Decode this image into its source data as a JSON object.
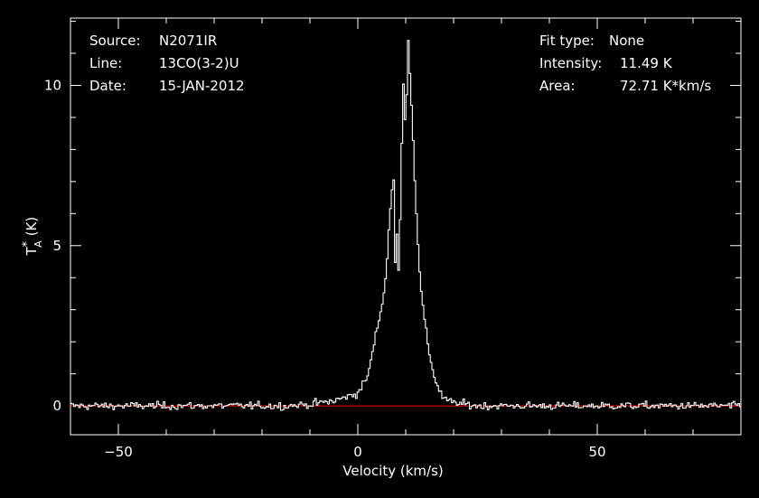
{
  "header": {
    "left": [
      {
        "key": "Source:",
        "value": "N2071IR"
      },
      {
        "key": "Line:",
        "value": "13CO(3-2)U"
      },
      {
        "key": "Date:",
        "value": "15-JAN-2012"
      }
    ],
    "right": [
      {
        "key": "Fit type:",
        "value": "None"
      },
      {
        "key": "Intensity:",
        "value": "11.49 K"
      },
      {
        "key": "Area:",
        "value": "72.71 K*km/s"
      }
    ]
  },
  "colors": {
    "background": "#000000",
    "axes": "#ffffff",
    "spectrum": "#ffffff",
    "baseline": "#ff0000"
  },
  "chart_data": {
    "type": "line",
    "title": "",
    "xlabel": "Velocity (km/s)",
    "ylabel_main": "T",
    "ylabel_sup": "*",
    "ylabel_sub": "A",
    "ylabel_unit": "(K)",
    "xlim": [
      -60,
      80
    ],
    "ylim": [
      -0.9,
      12.1
    ],
    "xticks": [
      {
        "value": -50,
        "label": "−50"
      },
      {
        "value": 0,
        "label": "0"
      },
      {
        "value": 50,
        "label": "50"
      }
    ],
    "yticks": [
      {
        "value": 0,
        "label": "0"
      },
      {
        "value": 5,
        "label": "5"
      },
      {
        "value": 10,
        "label": "10"
      }
    ],
    "baseline": 0,
    "grid": false,
    "legend": "none",
    "series": [
      {
        "style": "histogram",
        "profile_points": [
          [
            -60,
            0.0
          ],
          [
            -15,
            0.0
          ],
          [
            -10,
            0.05
          ],
          [
            -5,
            0.15
          ],
          [
            -2,
            0.3
          ],
          [
            0,
            0.4
          ],
          [
            2,
            0.9
          ],
          [
            3,
            1.6
          ],
          [
            4,
            2.4
          ],
          [
            5,
            3.1
          ],
          [
            6,
            4.2
          ],
          [
            6.5,
            5.6
          ],
          [
            7,
            6.6
          ],
          [
            7.5,
            7.1
          ],
          [
            7.9,
            3.9
          ],
          [
            8.2,
            5.5
          ],
          [
            8.6,
            3.8
          ],
          [
            9.0,
            7.0
          ],
          [
            9.5,
            10.1
          ],
          [
            10.0,
            8.6
          ],
          [
            10.5,
            11.49
          ],
          [
            11.0,
            10.2
          ],
          [
            12,
            6.8
          ],
          [
            13,
            3.9
          ],
          [
            14,
            2.6
          ],
          [
            15,
            1.6
          ],
          [
            16,
            0.9
          ],
          [
            17,
            0.5
          ],
          [
            18,
            0.2
          ],
          [
            20,
            0.1
          ],
          [
            25,
            0.0
          ],
          [
            80,
            0.0
          ]
        ],
        "noise_rms": 0.1,
        "step": 0.34
      }
    ]
  }
}
